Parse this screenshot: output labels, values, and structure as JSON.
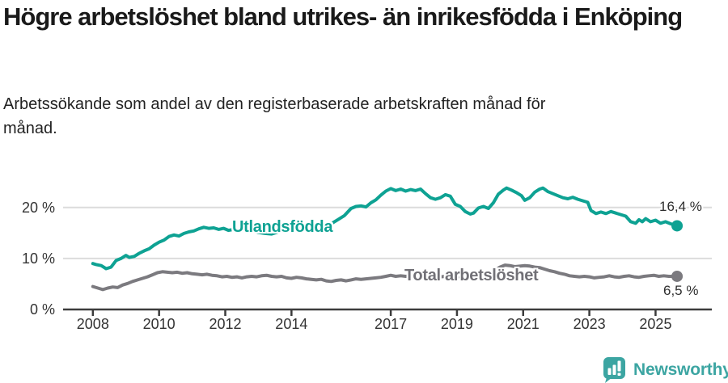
{
  "header": {
    "title": "Högre arbetslöshet bland utrikes- än inrikesfödda i Enköping",
    "subtitle": "Arbetssökande som andel av den registerbaserade arbetskraften månad för månad."
  },
  "footer": {
    "brand": "Newsworthy",
    "logo_icon": "bar-chart-speech-bubble-icon"
  },
  "colors": {
    "accent_teal": "#0ea293",
    "series_gray": "#7b7a7f",
    "grid": "#dcdcdc",
    "axis": "#3c3c3c",
    "text": "#333333",
    "logo_teal": "#3ca5a2"
  },
  "chart_data": {
    "type": "line",
    "title": "Högre arbetslöshet bland utrikes- än inrikesfödda i Enköping",
    "subtitle": "Arbetssökande som andel av den registerbaserade arbetskraften månad för månad.",
    "unit": "%",
    "grid": true,
    "legend_position": "inline-labels",
    "x_axis": {
      "range": [
        2007.1,
        2026.7
      ],
      "ticks": [
        {
          "value": 2008,
          "label": "2008"
        },
        {
          "value": 2010,
          "label": "2010"
        },
        {
          "value": 2012,
          "label": "2012"
        },
        {
          "value": 2014,
          "label": "2014"
        },
        {
          "value": 2017,
          "label": "2017"
        },
        {
          "value": 2019,
          "label": "2019"
        },
        {
          "value": 2021,
          "label": "2021"
        },
        {
          "value": 2023,
          "label": "2023"
        },
        {
          "value": 2025,
          "label": "2025"
        }
      ]
    },
    "y_axis": {
      "range": [
        0,
        25.5
      ],
      "ticks": [
        {
          "value": 0,
          "label": "0 %"
        },
        {
          "value": 10,
          "label": "10 %"
        },
        {
          "value": 20,
          "label": "20 %"
        }
      ]
    },
    "series": [
      {
        "name": "Utlandsfödda",
        "color": "#0ea293",
        "end_label": "16,4 %",
        "end_value": 16.4,
        "points": [
          [
            2008.0,
            9.0
          ],
          [
            2008.1,
            8.8
          ],
          [
            2008.25,
            8.6
          ],
          [
            2008.4,
            8.0
          ],
          [
            2008.55,
            8.3
          ],
          [
            2008.7,
            9.6
          ],
          [
            2008.85,
            10.0
          ],
          [
            2009.0,
            10.6
          ],
          [
            2009.1,
            10.2
          ],
          [
            2009.25,
            10.4
          ],
          [
            2009.4,
            11.0
          ],
          [
            2009.55,
            11.5
          ],
          [
            2009.7,
            11.9
          ],
          [
            2009.85,
            12.6
          ],
          [
            2010.0,
            13.2
          ],
          [
            2010.15,
            13.6
          ],
          [
            2010.3,
            14.3
          ],
          [
            2010.45,
            14.6
          ],
          [
            2010.6,
            14.4
          ],
          [
            2010.75,
            14.9
          ],
          [
            2010.9,
            15.2
          ],
          [
            2011.05,
            15.4
          ],
          [
            2011.2,
            15.8
          ],
          [
            2011.35,
            16.1
          ],
          [
            2011.5,
            15.9
          ],
          [
            2011.65,
            16.0
          ],
          [
            2011.8,
            15.7
          ],
          [
            2011.95,
            15.9
          ],
          [
            2012.1,
            15.5
          ],
          [
            2012.25,
            15.7
          ],
          [
            2012.4,
            15.3
          ],
          [
            2012.55,
            15.5
          ],
          [
            2012.7,
            15.2
          ],
          [
            2012.85,
            15.4
          ],
          [
            2013.0,
            15.1
          ],
          [
            2013.2,
            14.9
          ],
          [
            2013.4,
            14.8
          ],
          [
            2013.6,
            15.2
          ],
          [
            2013.8,
            15.5
          ],
          [
            2014.0,
            15.7
          ],
          [
            2014.25,
            15.8
          ],
          [
            2014.5,
            16.0
          ],
          [
            2014.75,
            16.1
          ],
          [
            2015.0,
            16.3
          ],
          [
            2015.2,
            16.8
          ],
          [
            2015.4,
            17.6
          ],
          [
            2015.6,
            18.4
          ],
          [
            2015.8,
            19.8
          ],
          [
            2015.95,
            20.2
          ],
          [
            2016.1,
            20.3
          ],
          [
            2016.25,
            20.1
          ],
          [
            2016.4,
            20.9
          ],
          [
            2016.55,
            21.5
          ],
          [
            2016.7,
            22.4
          ],
          [
            2016.85,
            23.2
          ],
          [
            2017.0,
            23.7
          ],
          [
            2017.15,
            23.3
          ],
          [
            2017.3,
            23.6
          ],
          [
            2017.45,
            23.2
          ],
          [
            2017.6,
            23.5
          ],
          [
            2017.75,
            23.3
          ],
          [
            2017.9,
            23.6
          ],
          [
            2018.05,
            22.7
          ],
          [
            2018.2,
            21.9
          ],
          [
            2018.35,
            21.6
          ],
          [
            2018.5,
            21.9
          ],
          [
            2018.65,
            22.5
          ],
          [
            2018.8,
            22.2
          ],
          [
            2018.95,
            20.6
          ],
          [
            2019.1,
            20.2
          ],
          [
            2019.25,
            19.2
          ],
          [
            2019.4,
            18.7
          ],
          [
            2019.5,
            18.9
          ],
          [
            2019.65,
            19.9
          ],
          [
            2019.8,
            20.2
          ],
          [
            2019.95,
            19.8
          ],
          [
            2020.1,
            20.9
          ],
          [
            2020.25,
            22.6
          ],
          [
            2020.4,
            23.4
          ],
          [
            2020.5,
            23.8
          ],
          [
            2020.65,
            23.4
          ],
          [
            2020.8,
            22.9
          ],
          [
            2020.95,
            22.3
          ],
          [
            2021.05,
            21.4
          ],
          [
            2021.2,
            21.9
          ],
          [
            2021.35,
            23.0
          ],
          [
            2021.5,
            23.6
          ],
          [
            2021.6,
            23.8
          ],
          [
            2021.75,
            23.1
          ],
          [
            2021.9,
            22.7
          ],
          [
            2022.05,
            22.3
          ],
          [
            2022.2,
            21.9
          ],
          [
            2022.35,
            21.7
          ],
          [
            2022.5,
            22.0
          ],
          [
            2022.65,
            21.6
          ],
          [
            2022.8,
            21.3
          ],
          [
            2022.95,
            21.0
          ],
          [
            2023.05,
            19.4
          ],
          [
            2023.2,
            18.8
          ],
          [
            2023.35,
            19.1
          ],
          [
            2023.5,
            18.8
          ],
          [
            2023.65,
            19.2
          ],
          [
            2023.8,
            18.9
          ],
          [
            2023.95,
            18.6
          ],
          [
            2024.1,
            18.3
          ],
          [
            2024.25,
            17.2
          ],
          [
            2024.4,
            16.9
          ],
          [
            2024.5,
            17.6
          ],
          [
            2024.6,
            17.2
          ],
          [
            2024.7,
            17.8
          ],
          [
            2024.85,
            17.2
          ],
          [
            2025.0,
            17.5
          ],
          [
            2025.15,
            16.9
          ],
          [
            2025.3,
            17.2
          ],
          [
            2025.45,
            16.8
          ],
          [
            2025.65,
            16.4
          ]
        ]
      },
      {
        "name": "Total arbetslöshet",
        "color": "#7b7a7f",
        "end_label": "6,5 %",
        "end_value": 6.5,
        "points": [
          [
            2008.0,
            4.5
          ],
          [
            2008.15,
            4.2
          ],
          [
            2008.3,
            3.9
          ],
          [
            2008.45,
            4.2
          ],
          [
            2008.6,
            4.4
          ],
          [
            2008.75,
            4.3
          ],
          [
            2008.9,
            4.8
          ],
          [
            2009.05,
            5.1
          ],
          [
            2009.2,
            5.5
          ],
          [
            2009.35,
            5.8
          ],
          [
            2009.5,
            6.1
          ],
          [
            2009.65,
            6.4
          ],
          [
            2009.8,
            6.8
          ],
          [
            2009.95,
            7.2
          ],
          [
            2010.1,
            7.4
          ],
          [
            2010.25,
            7.3
          ],
          [
            2010.4,
            7.2
          ],
          [
            2010.55,
            7.3
          ],
          [
            2010.7,
            7.1
          ],
          [
            2010.85,
            7.2
          ],
          [
            2011.0,
            7.0
          ],
          [
            2011.15,
            6.9
          ],
          [
            2011.3,
            6.8
          ],
          [
            2011.45,
            6.9
          ],
          [
            2011.6,
            6.7
          ],
          [
            2011.75,
            6.6
          ],
          [
            2011.9,
            6.4
          ],
          [
            2012.05,
            6.5
          ],
          [
            2012.2,
            6.3
          ],
          [
            2012.35,
            6.4
          ],
          [
            2012.5,
            6.2
          ],
          [
            2012.65,
            6.4
          ],
          [
            2012.8,
            6.5
          ],
          [
            2012.95,
            6.4
          ],
          [
            2013.1,
            6.6
          ],
          [
            2013.25,
            6.7
          ],
          [
            2013.4,
            6.5
          ],
          [
            2013.55,
            6.4
          ],
          [
            2013.7,
            6.5
          ],
          [
            2013.85,
            6.2
          ],
          [
            2014.0,
            6.1
          ],
          [
            2014.15,
            6.3
          ],
          [
            2014.3,
            6.2
          ],
          [
            2014.45,
            6.0
          ],
          [
            2014.6,
            5.9
          ],
          [
            2014.75,
            5.8
          ],
          [
            2014.9,
            5.9
          ],
          [
            2015.05,
            5.6
          ],
          [
            2015.2,
            5.5
          ],
          [
            2015.35,
            5.7
          ],
          [
            2015.5,
            5.8
          ],
          [
            2015.65,
            5.6
          ],
          [
            2015.8,
            5.8
          ],
          [
            2015.95,
            6.0
          ],
          [
            2016.1,
            5.9
          ],
          [
            2016.25,
            6.0
          ],
          [
            2016.4,
            6.1
          ],
          [
            2016.55,
            6.2
          ],
          [
            2016.7,
            6.3
          ],
          [
            2016.85,
            6.5
          ],
          [
            2017.0,
            6.7
          ],
          [
            2017.15,
            6.5
          ],
          [
            2017.3,
            6.6
          ],
          [
            2017.45,
            6.5
          ],
          [
            2017.6,
            6.6
          ],
          [
            2017.75,
            6.7
          ],
          [
            2017.9,
            6.6
          ],
          [
            2018.05,
            6.5
          ],
          [
            2018.2,
            6.4
          ],
          [
            2018.35,
            6.5
          ],
          [
            2018.5,
            6.4
          ],
          [
            2018.65,
            6.5
          ],
          [
            2018.8,
            6.4
          ],
          [
            2018.95,
            6.5
          ],
          [
            2019.1,
            6.4
          ],
          [
            2019.25,
            6.5
          ],
          [
            2019.4,
            6.4
          ],
          [
            2019.55,
            6.6
          ],
          [
            2019.7,
            6.7
          ],
          [
            2019.85,
            6.9
          ],
          [
            2020.0,
            7.1
          ],
          [
            2020.15,
            7.7
          ],
          [
            2020.3,
            8.3
          ],
          [
            2020.45,
            8.7
          ],
          [
            2020.6,
            8.6
          ],
          [
            2020.75,
            8.4
          ],
          [
            2020.9,
            8.5
          ],
          [
            2021.05,
            8.6
          ],
          [
            2021.2,
            8.5
          ],
          [
            2021.35,
            8.3
          ],
          [
            2021.5,
            8.2
          ],
          [
            2021.65,
            7.9
          ],
          [
            2021.8,
            7.6
          ],
          [
            2021.95,
            7.4
          ],
          [
            2022.1,
            7.1
          ],
          [
            2022.25,
            6.9
          ],
          [
            2022.4,
            6.6
          ],
          [
            2022.55,
            6.5
          ],
          [
            2022.7,
            6.4
          ],
          [
            2022.85,
            6.5
          ],
          [
            2023.0,
            6.4
          ],
          [
            2023.15,
            6.2
          ],
          [
            2023.3,
            6.3
          ],
          [
            2023.45,
            6.4
          ],
          [
            2023.6,
            6.6
          ],
          [
            2023.75,
            6.4
          ],
          [
            2023.9,
            6.3
          ],
          [
            2024.05,
            6.5
          ],
          [
            2024.2,
            6.6
          ],
          [
            2024.35,
            6.4
          ],
          [
            2024.5,
            6.3
          ],
          [
            2024.65,
            6.5
          ],
          [
            2024.8,
            6.6
          ],
          [
            2024.95,
            6.7
          ],
          [
            2025.1,
            6.5
          ],
          [
            2025.25,
            6.6
          ],
          [
            2025.4,
            6.5
          ],
          [
            2025.65,
            6.5
          ]
        ]
      }
    ]
  }
}
